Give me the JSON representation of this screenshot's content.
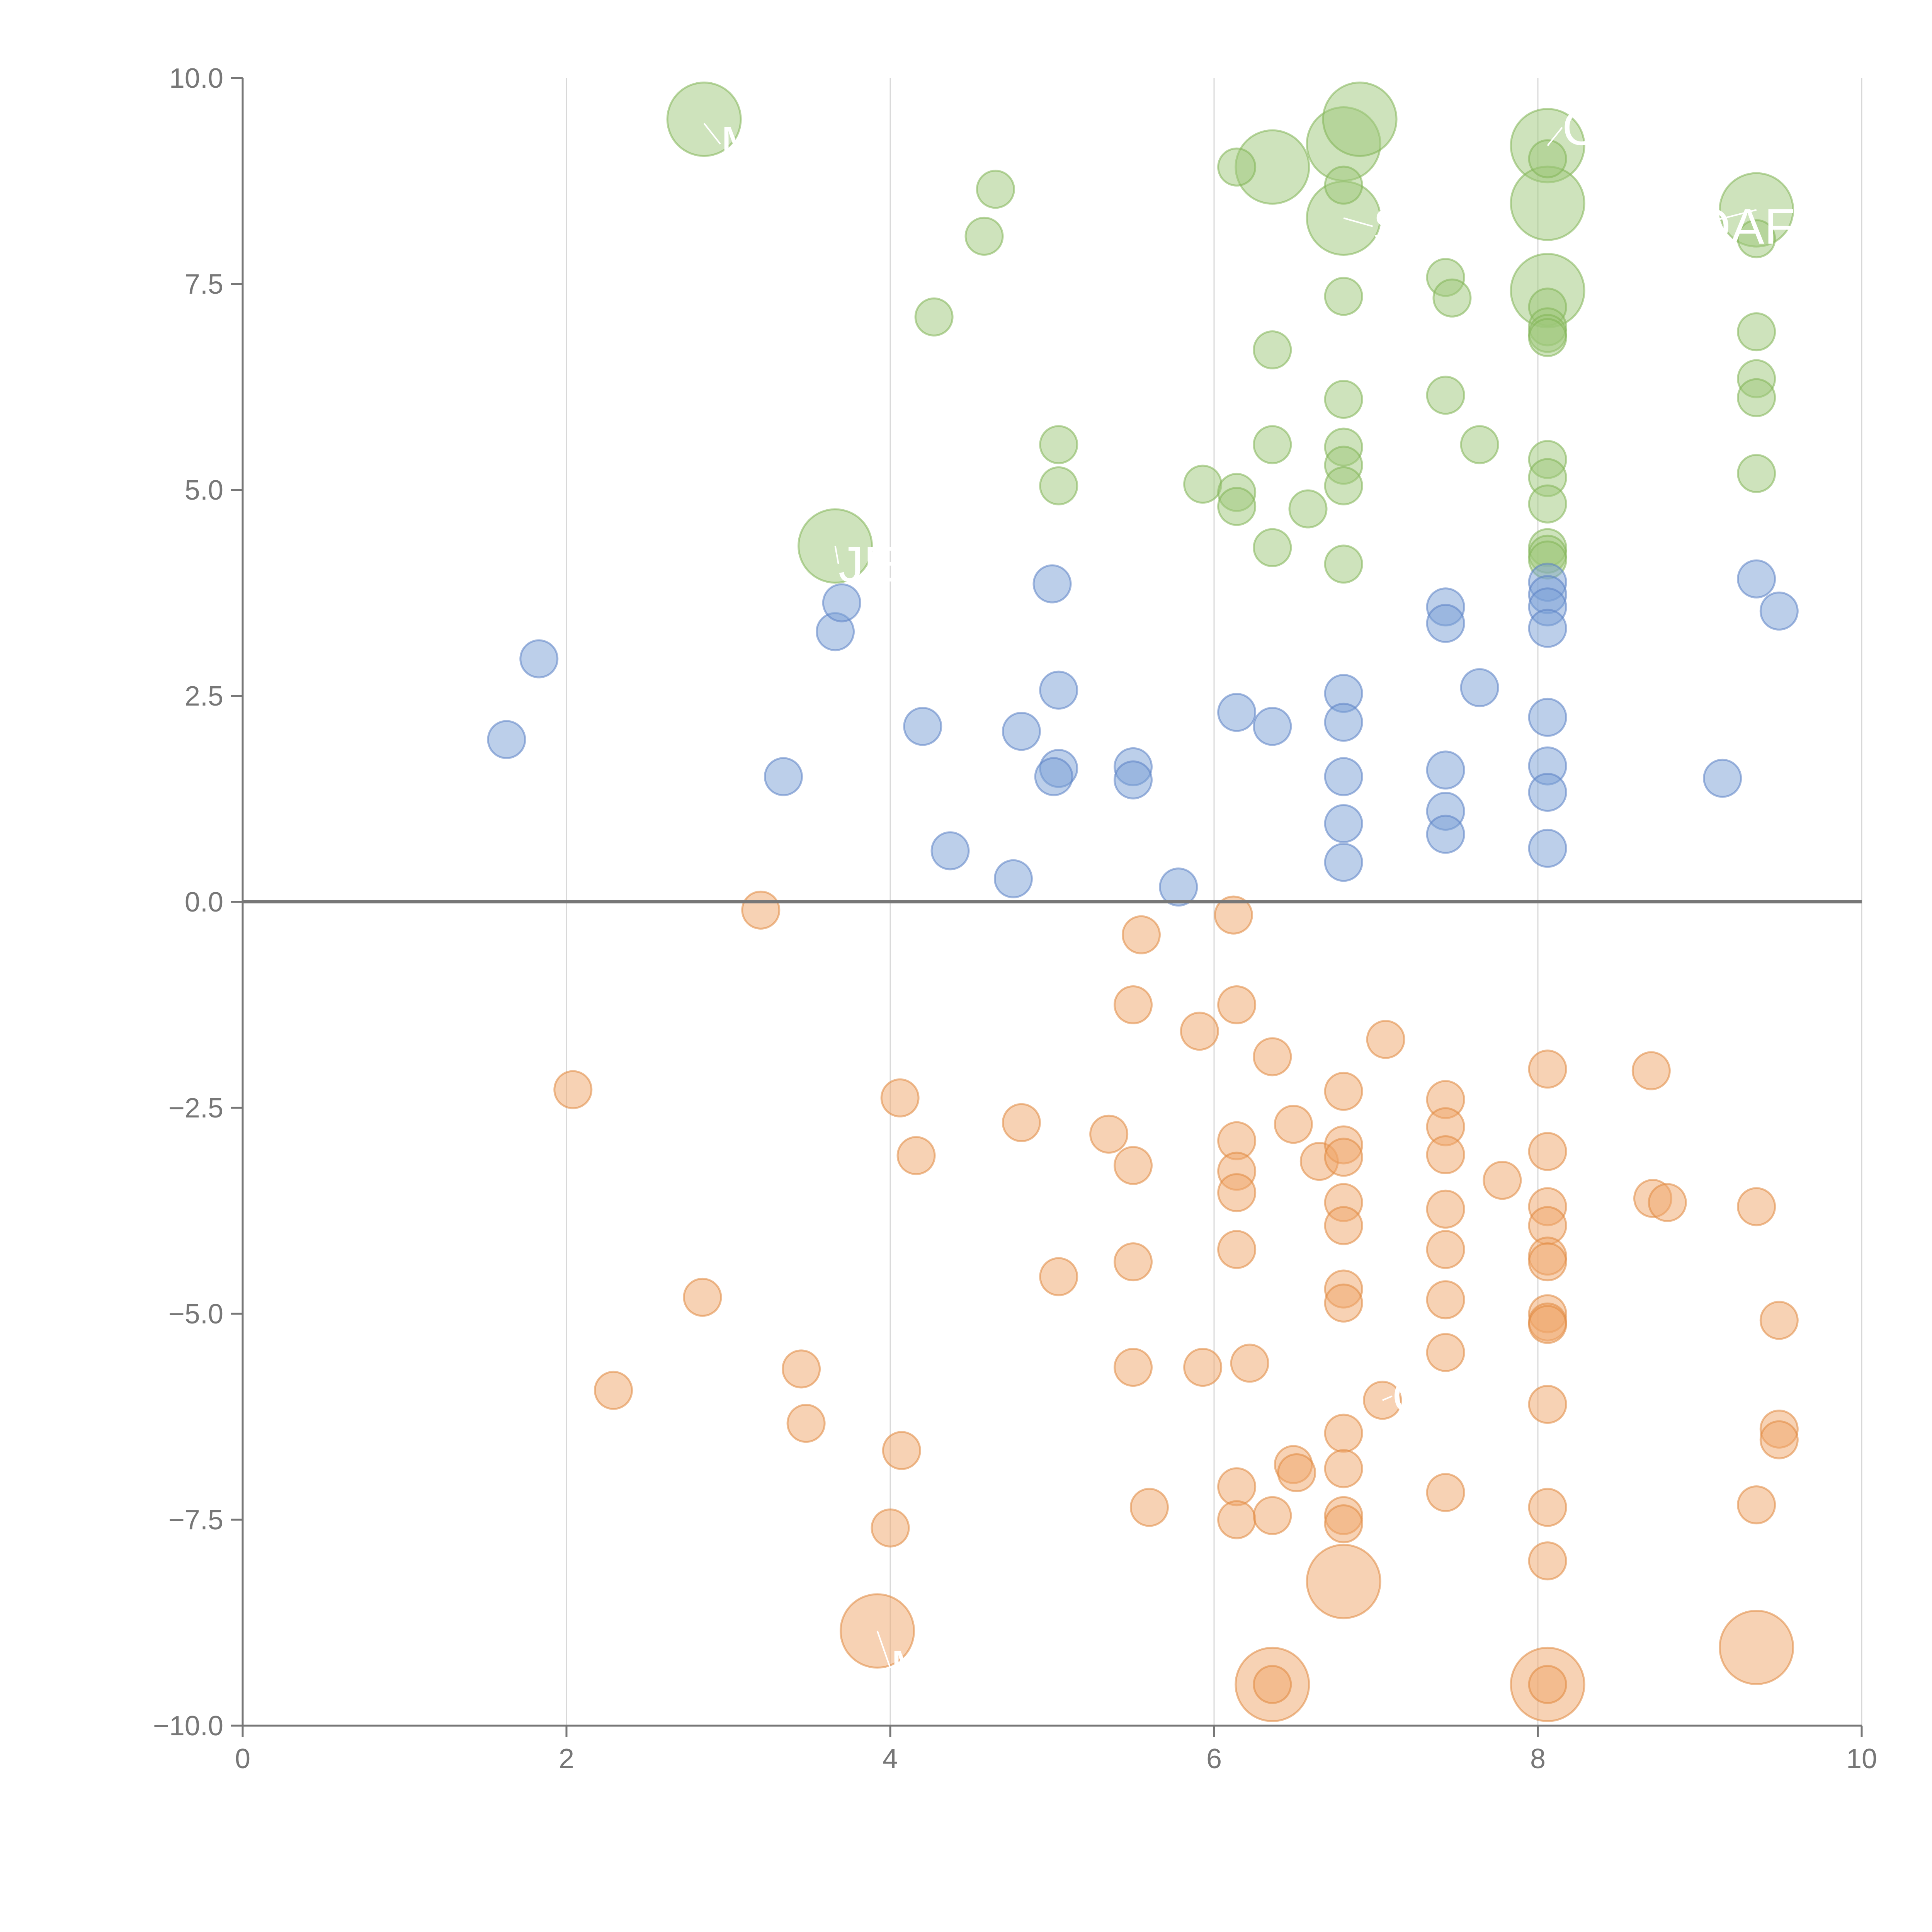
{
  "chart_data": {
    "type": "scatter",
    "title": "",
    "xlabel": "",
    "ylabel": "",
    "xlim": [
      0,
      10
    ],
    "ylim": [
      -10,
      10
    ],
    "x_ticks": [
      0,
      2,
      4,
      6,
      8,
      10
    ],
    "x_tick_labels": [
      "0",
      "2",
      "4",
      "6",
      "8",
      "10"
    ],
    "y_ticks": [
      -10,
      -7.5,
      -5,
      -2.5,
      0,
      2.5,
      5,
      7.5,
      10
    ],
    "y_tick_labels": [
      "−10.0",
      "−7.5",
      "−5.0",
      "−2.5",
      "0.0",
      "2.5",
      "5.0",
      "7.5",
      "10.0"
    ],
    "grid": "vertical",
    "reference_line_y": 0,
    "colors": {
      "green_fill": "#9dc87a",
      "green_stroke": "#82b556",
      "blue_fill": "#7a9fd6",
      "blue_stroke": "#5b82c4",
      "orange_fill": "#f0a56a",
      "orange_stroke": "#e08840",
      "axis": "#777777",
      "grid": "#d8d8d8"
    },
    "series": [
      {
        "name": "green",
        "color_key": "green",
        "points": [
          [
            2.85,
            9.5,
            2
          ],
          [
            3.66,
            4.32,
            2
          ],
          [
            6.36,
            8.92,
            2
          ],
          [
            6.8,
            9.2,
            2
          ],
          [
            6.9,
            9.5,
            2
          ],
          [
            6.8,
            8.3,
            2
          ],
          [
            8.06,
            9.18,
            2
          ],
          [
            8.06,
            8.48,
            2
          ],
          [
            8.06,
            7.42,
            2
          ],
          [
            9.35,
            8.4,
            2
          ],
          [
            4.65,
            8.65,
            1
          ],
          [
            4.58,
            8.08,
            1
          ],
          [
            4.27,
            7.1,
            1
          ],
          [
            6.14,
            8.92,
            1
          ],
          [
            6.8,
            8.7,
            1
          ],
          [
            6.8,
            7.35,
            1
          ],
          [
            6.36,
            6.7,
            1
          ],
          [
            5.04,
            5.55,
            1
          ],
          [
            5.04,
            5.05,
            1
          ],
          [
            5.93,
            5.07,
            1
          ],
          [
            6.14,
            4.97,
            1
          ],
          [
            6.14,
            4.8,
            1
          ],
          [
            6.36,
            5.55,
            1
          ],
          [
            6.36,
            4.3,
            1
          ],
          [
            6.58,
            4.77,
            1
          ],
          [
            6.8,
            6.1,
            1
          ],
          [
            6.8,
            5.52,
            1
          ],
          [
            6.8,
            5.3,
            1
          ],
          [
            6.8,
            5.05,
            1
          ],
          [
            6.8,
            4.1,
            1
          ],
          [
            7.43,
            7.58,
            1
          ],
          [
            7.47,
            7.33,
            1
          ],
          [
            7.43,
            6.15,
            1
          ],
          [
            7.64,
            5.55,
            1
          ],
          [
            8.06,
            9.02,
            1
          ],
          [
            8.06,
            7.22,
            1
          ],
          [
            8.06,
            6.98,
            1
          ],
          [
            8.06,
            6.9,
            1
          ],
          [
            8.06,
            6.85,
            1
          ],
          [
            8.06,
            5.37,
            1
          ],
          [
            8.06,
            5.15,
            1
          ],
          [
            8.06,
            4.83,
            1
          ],
          [
            8.06,
            4.3,
            1
          ],
          [
            8.06,
            4.22,
            1
          ],
          [
            8.06,
            4.15,
            1
          ],
          [
            9.35,
            8.05,
            1
          ],
          [
            9.35,
            6.92,
            1
          ],
          [
            9.35,
            6.35,
            1
          ],
          [
            9.35,
            6.12,
            1
          ],
          [
            9.35,
            5.2,
            1
          ]
        ]
      },
      {
        "name": "blue",
        "color_key": "blue",
        "points": [
          [
            1.63,
            1.97,
            1
          ],
          [
            1.83,
            2.95,
            1
          ],
          [
            3.34,
            1.52,
            1
          ],
          [
            3.66,
            3.28,
            1
          ],
          [
            3.7,
            3.63,
            1
          ],
          [
            4.2,
            2.13,
            1
          ],
          [
            4.37,
            0.62,
            1
          ],
          [
            4.76,
            0.28,
            1
          ],
          [
            4.81,
            2.07,
            1
          ],
          [
            5.0,
            3.86,
            1
          ],
          [
            5.04,
            2.57,
            1
          ],
          [
            5.04,
            1.62,
            1
          ],
          [
            5.01,
            1.52,
            1
          ],
          [
            5.5,
            1.64,
            1
          ],
          [
            5.5,
            1.48,
            1
          ],
          [
            5.78,
            0.18,
            1
          ],
          [
            6.14,
            2.3,
            1
          ],
          [
            6.36,
            2.13,
            1
          ],
          [
            6.8,
            2.53,
            1
          ],
          [
            6.8,
            2.18,
            1
          ],
          [
            6.8,
            1.52,
            1
          ],
          [
            6.8,
            0.95,
            1
          ],
          [
            6.8,
            0.48,
            1
          ],
          [
            7.43,
            3.58,
            1
          ],
          [
            7.43,
            3.38,
            1
          ],
          [
            7.64,
            2.6,
            1
          ],
          [
            7.43,
            1.6,
            1
          ],
          [
            7.43,
            1.1,
            1
          ],
          [
            7.43,
            0.82,
            1
          ],
          [
            8.06,
            3.88,
            1
          ],
          [
            8.06,
            3.73,
            1
          ],
          [
            8.06,
            3.58,
            1
          ],
          [
            8.06,
            3.32,
            1
          ],
          [
            8.06,
            2.24,
            1
          ],
          [
            8.06,
            1.65,
            1
          ],
          [
            8.06,
            1.33,
            1
          ],
          [
            8.06,
            0.65,
            1
          ],
          [
            9.14,
            1.5,
            1
          ],
          [
            9.35,
            3.92,
            1
          ],
          [
            9.49,
            3.53,
            1
          ]
        ]
      },
      {
        "name": "orange",
        "color_key": "orange",
        "points": [
          [
            3.92,
            -8.85,
            2
          ],
          [
            6.8,
            -8.25,
            2
          ],
          [
            6.36,
            -9.5,
            2
          ],
          [
            8.06,
            -9.5,
            2
          ],
          [
            9.35,
            -9.05,
            2
          ],
          [
            2.04,
            -2.28,
            1
          ],
          [
            2.29,
            -5.93,
            1
          ],
          [
            2.84,
            -4.8,
            1
          ],
          [
            3.2,
            -0.1,
            1
          ],
          [
            3.45,
            -5.67,
            1
          ],
          [
            3.48,
            -6.33,
            1
          ],
          [
            4.0,
            -7.6,
            1
          ],
          [
            4.06,
            -2.38,
            1
          ],
          [
            4.07,
            -6.66,
            1
          ],
          [
            4.16,
            -3.08,
            1
          ],
          [
            4.81,
            -2.68,
            1
          ],
          [
            5.04,
            -4.55,
            1
          ],
          [
            5.35,
            -2.82,
            1
          ],
          [
            5.5,
            -1.25,
            1
          ],
          [
            5.5,
            -3.2,
            1
          ],
          [
            5.5,
            -4.37,
            1
          ],
          [
            5.5,
            -5.65,
            1
          ],
          [
            5.55,
            -0.4,
            1
          ],
          [
            5.6,
            -7.35,
            1
          ],
          [
            5.91,
            -1.57,
            1
          ],
          [
            5.93,
            -5.65,
            1
          ],
          [
            6.12,
            -0.16,
            1
          ],
          [
            6.14,
            -1.25,
            1
          ],
          [
            6.14,
            -2.9,
            1
          ],
          [
            6.14,
            -3.27,
            1
          ],
          [
            6.14,
            -3.53,
            1
          ],
          [
            6.14,
            -4.22,
            1
          ],
          [
            6.14,
            -7.1,
            1
          ],
          [
            6.14,
            -7.5,
            1
          ],
          [
            6.22,
            -5.6,
            1
          ],
          [
            6.36,
            -1.88,
            1
          ],
          [
            6.36,
            -7.45,
            1
          ],
          [
            6.36,
            -9.5,
            1
          ],
          [
            6.49,
            -2.7,
            1
          ],
          [
            6.49,
            -6.83,
            1
          ],
          [
            6.51,
            -6.93,
            1
          ],
          [
            6.65,
            -3.15,
            1
          ],
          [
            6.8,
            -2.3,
            1
          ],
          [
            6.8,
            -2.95,
            1
          ],
          [
            6.8,
            -3.1,
            1
          ],
          [
            6.8,
            -3.65,
            1
          ],
          [
            6.8,
            -3.93,
            1
          ],
          [
            6.8,
            -4.7,
            1
          ],
          [
            6.8,
            -4.87,
            1
          ],
          [
            6.8,
            -6.45,
            1
          ],
          [
            6.8,
            -6.88,
            1
          ],
          [
            6.8,
            -7.45,
            1
          ],
          [
            6.8,
            -7.55,
            1
          ],
          [
            7.06,
            -1.67,
            1
          ],
          [
            7.04,
            -6.05,
            1
          ],
          [
            7.43,
            -2.4,
            1
          ],
          [
            7.43,
            -2.73,
            1
          ],
          [
            7.43,
            -3.07,
            1
          ],
          [
            7.43,
            -3.73,
            1
          ],
          [
            7.43,
            -4.22,
            1
          ],
          [
            7.43,
            -4.83,
            1
          ],
          [
            7.43,
            -5.47,
            1
          ],
          [
            7.43,
            -7.17,
            1
          ],
          [
            7.78,
            -3.38,
            1
          ],
          [
            8.06,
            -2.03,
            1
          ],
          [
            8.06,
            -3.03,
            1
          ],
          [
            8.06,
            -3.7,
            1
          ],
          [
            8.06,
            -3.93,
            1
          ],
          [
            8.06,
            -4.3,
            1
          ],
          [
            8.06,
            -4.37,
            1
          ],
          [
            8.06,
            -5.0,
            1
          ],
          [
            8.06,
            -5.1,
            1
          ],
          [
            8.06,
            -5.13,
            1
          ],
          [
            8.06,
            -6.1,
            1
          ],
          [
            8.06,
            -7.35,
            1
          ],
          [
            8.06,
            -8.0,
            1
          ],
          [
            8.06,
            -9.5,
            1
          ],
          [
            8.7,
            -2.05,
            1
          ],
          [
            8.71,
            -3.6,
            1
          ],
          [
            8.8,
            -3.65,
            1
          ],
          [
            9.35,
            -3.7,
            1
          ],
          [
            9.35,
            -7.32,
            1
          ],
          [
            9.49,
            -5.08,
            1
          ],
          [
            9.49,
            -6.4,
            1
          ],
          [
            9.49,
            -6.53,
            1
          ]
        ]
      }
    ],
    "labels": [
      {
        "text": "M",
        "x": 2.95,
        "y": 9.2,
        "px": 2.85,
        "py": 9.45
      },
      {
        "text": "S",
        "x": 6.98,
        "y": 8.2,
        "px": 6.8,
        "py": 8.3
      },
      {
        "text": "OAF",
        "x": 8.95,
        "y": 8.2,
        "px": 9.35,
        "py": 8.4
      },
      {
        "text": "C",
        "x": 8.15,
        "y": 9.4,
        "px": 8.06,
        "py": 9.18
      },
      {
        "text": "JE",
        "x": 3.68,
        "y": 4.1,
        "px": 3.66,
        "py": 4.32
      },
      {
        "text": "M",
        "x": 4.0,
        "y": -9.3,
        "px": 3.92,
        "py": -8.85
      },
      {
        "text": "ON",
        "x": 7.1,
        "y": -6.0,
        "px": 7.04,
        "py": -6.05
      }
    ]
  }
}
